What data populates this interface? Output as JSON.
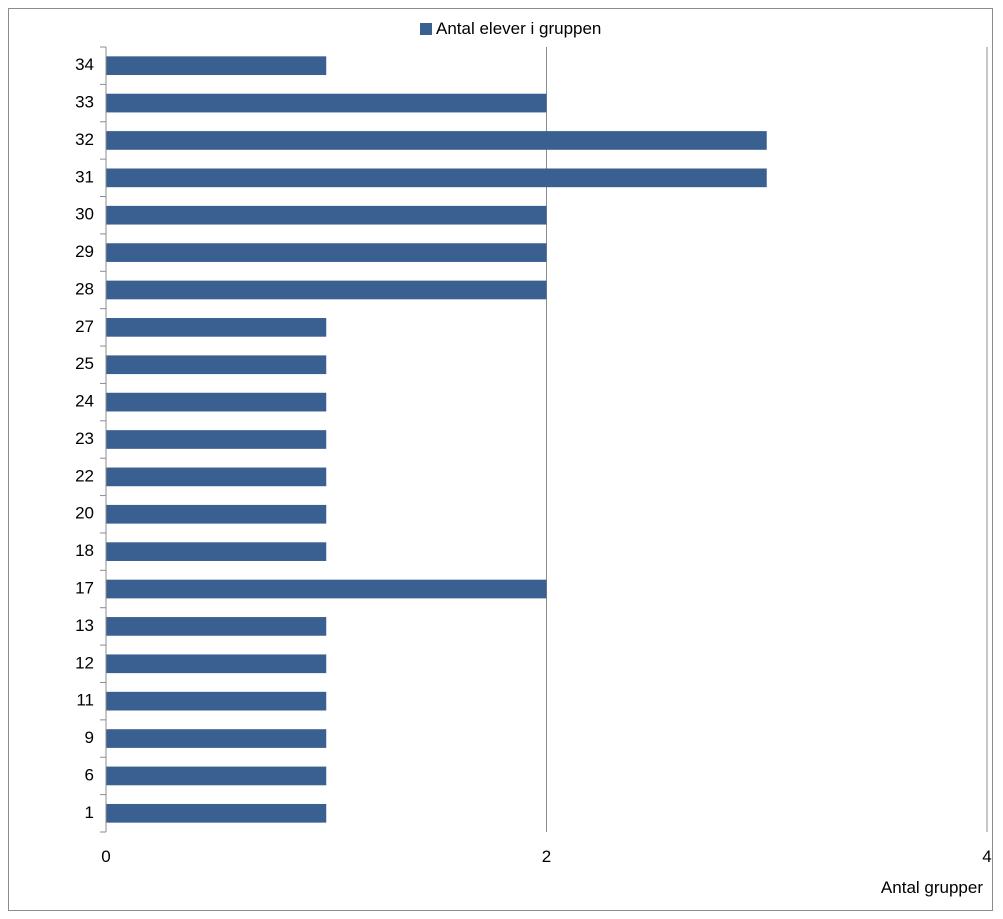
{
  "chart_data": {
    "type": "bar",
    "orientation": "horizontal",
    "title": "",
    "xlabel": "Antal grupper",
    "ylabel": "",
    "categories": [
      "1",
      "6",
      "9",
      "11",
      "12",
      "13",
      "17",
      "18",
      "20",
      "22",
      "23",
      "24",
      "25",
      "27",
      "28",
      "29",
      "30",
      "31",
      "32",
      "33",
      "34"
    ],
    "series": [
      {
        "name": "Antal elever i gruppen",
        "color": "#3A6091",
        "values": [
          1,
          1,
          1,
          1,
          1,
          1,
          2,
          1,
          1,
          1,
          1,
          1,
          1,
          1,
          2,
          2,
          2,
          3,
          3,
          2,
          1
        ]
      }
    ],
    "xlim": [
      0,
      4
    ],
    "xticks": [
      0,
      2,
      4
    ],
    "grid": "vertical major gridlines",
    "legend_position": "top"
  }
}
